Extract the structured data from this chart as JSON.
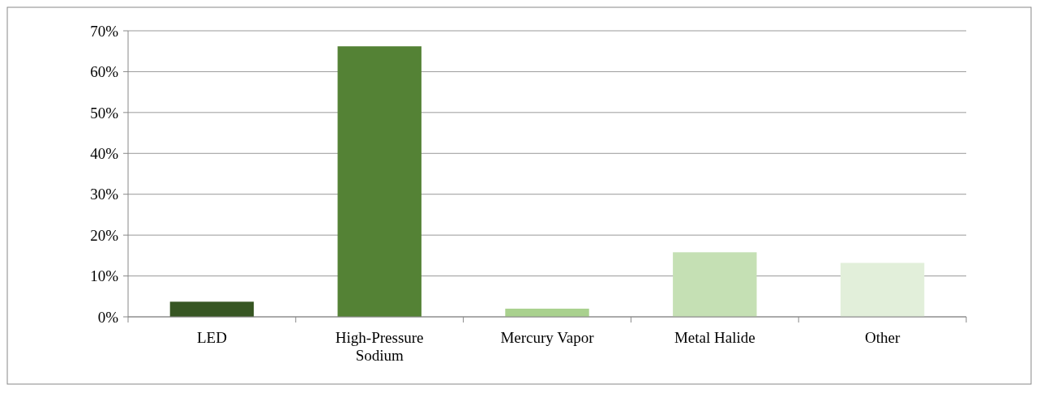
{
  "chart_data": {
    "type": "bar",
    "categories": [
      "LED",
      "High-Pressure Sodium",
      "Mercury Vapor",
      "Metal Halide",
      "Other"
    ],
    "values": [
      3.7,
      66.2,
      2,
      15.8,
      13.2
    ],
    "colors": [
      "#375623",
      "#548235",
      "#a9d18e",
      "#c5e0b4",
      "#e2efda"
    ],
    "ylim": [
      0,
      70
    ],
    "yticks": [
      {
        "value": 0,
        "label": "0%"
      },
      {
        "value": 10,
        "label": "10%"
      },
      {
        "value": 20,
        "label": "20%"
      },
      {
        "value": 30,
        "label": "30%"
      },
      {
        "value": 40,
        "label": "40%"
      },
      {
        "value": 50,
        "label": "50%"
      },
      {
        "value": 60,
        "label": "60%"
      },
      {
        "value": 70,
        "label": "70%"
      }
    ],
    "grid": "y"
  }
}
